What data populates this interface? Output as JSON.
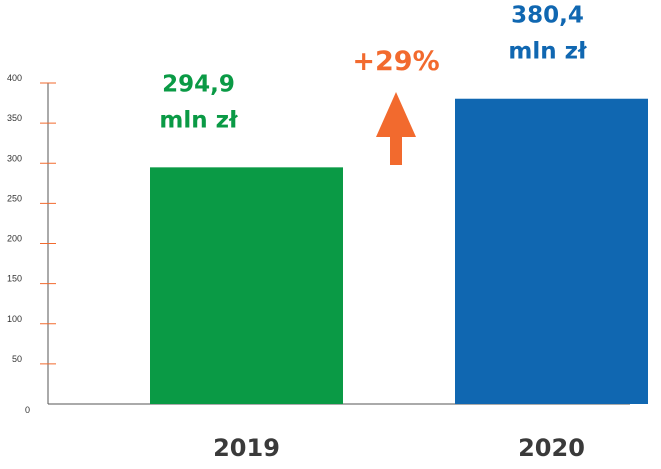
{
  "chart_data": {
    "type": "bar",
    "categories": [
      "2019",
      "2020"
    ],
    "values": [
      294.9,
      380.4
    ],
    "value_labels": [
      [
        "294,9",
        "mln zł"
      ],
      [
        "380,4",
        "mln zł"
      ]
    ],
    "change_label": "+29%",
    "ylim": [
      0,
      400
    ],
    "yticks": [
      0,
      50,
      100,
      150,
      200,
      250,
      300,
      350,
      400
    ],
    "grid": false,
    "colors": {
      "bar_2019": "#0a9a45",
      "bar_2020": "#1067b1",
      "label_2019": "#0a9a45",
      "label_2020": "#1067b1",
      "change": "#f26a2e",
      "axis_ticks": "#f26a2e",
      "axis_line": "#555555"
    }
  }
}
